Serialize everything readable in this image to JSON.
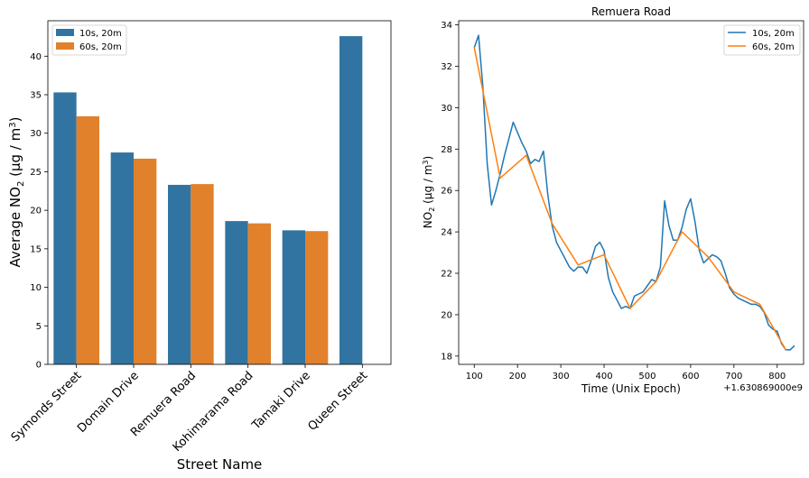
{
  "colors": {
    "blue": "#3274a1",
    "orange": "#e1812c",
    "line_blue": "#1f77b4",
    "line_orange": "#ff7f0e"
  },
  "chart_data": [
    {
      "type": "bar",
      "title": "",
      "xlabel": "Street Name",
      "ylabel_prefix": "Average NO",
      "ylabel_sub": "2",
      "ylabel_mid": " (µg / m",
      "ylabel_sup": "3",
      "ylabel_end": ")",
      "categories": [
        "Symonds Street",
        "Domain Drive",
        "Remuera Road",
        "Kohimarama Road",
        "Tamaki Drive",
        "Queen Street"
      ],
      "series": [
        {
          "name": "10s, 20m",
          "values": [
            35.3,
            27.5,
            23.3,
            18.6,
            17.4,
            42.6
          ]
        },
        {
          "name": "60s, 20m",
          "values": [
            32.2,
            26.7,
            23.4,
            18.3,
            17.3,
            null
          ]
        }
      ],
      "ylim": [
        0,
        44.6
      ],
      "yticks": [
        0,
        5,
        10,
        15,
        20,
        25,
        30,
        35,
        40
      ],
      "legend": "top-left"
    },
    {
      "type": "line",
      "title": "Remuera Road",
      "xlabel": "Time (Unix Epoch)",
      "x_offset_label": "+1.630869000e9",
      "ylabel_prefix": "NO",
      "ylabel_sub": "2",
      "ylabel_mid": " (µg / m",
      "ylabel_sup": "3",
      "ylabel_end": ")",
      "xlim": [
        64,
        861
      ],
      "ylim": [
        17.6,
        34.2
      ],
      "xticks": [
        100,
        200,
        300,
        400,
        500,
        600,
        700,
        800
      ],
      "yticks": [
        18,
        20,
        22,
        24,
        26,
        28,
        30,
        32,
        34
      ],
      "legend": "top-right",
      "series": [
        {
          "name": "10s, 20m",
          "x": [
            100,
            110,
            120,
            130,
            140,
            150,
            160,
            170,
            180,
            190,
            200,
            210,
            220,
            230,
            240,
            250,
            260,
            270,
            280,
            290,
            300,
            310,
            320,
            330,
            340,
            350,
            360,
            370,
            380,
            390,
            400,
            410,
            420,
            430,
            440,
            450,
            460,
            470,
            480,
            490,
            500,
            510,
            520,
            530,
            540,
            550,
            560,
            570,
            580,
            590,
            600,
            610,
            620,
            630,
            640,
            650,
            660,
            670,
            680,
            690,
            700,
            710,
            720,
            730,
            740,
            750,
            760,
            770,
            780,
            790,
            800,
            810,
            820,
            830,
            840
          ],
          "y": [
            32.9,
            33.5,
            31.0,
            27.3,
            25.3,
            26.0,
            26.8,
            27.7,
            28.5,
            29.3,
            28.8,
            28.3,
            27.9,
            27.3,
            27.5,
            27.4,
            27.9,
            25.8,
            24.3,
            23.5,
            23.1,
            22.7,
            22.3,
            22.1,
            22.3,
            22.3,
            22.0,
            22.6,
            23.3,
            23.5,
            23.1,
            21.8,
            21.1,
            20.7,
            20.3,
            20.4,
            20.3,
            20.9,
            21.0,
            21.1,
            21.4,
            21.7,
            21.6,
            22.3,
            25.5,
            24.3,
            23.6,
            23.6,
            24.2,
            25.1,
            25.6,
            24.5,
            23.1,
            22.5,
            22.7,
            22.9,
            22.8,
            22.6,
            22.0,
            21.3,
            21.0,
            20.8,
            20.7,
            20.6,
            20.5,
            20.5,
            20.4,
            20.1,
            19.5,
            19.3,
            19.2,
            18.6,
            18.3,
            18.3,
            18.5
          ]
        },
        {
          "name": "60s, 20m",
          "x": [
            100,
            160,
            220,
            280,
            340,
            400,
            460,
            520,
            580,
            640,
            700,
            760,
            820
          ],
          "y": [
            32.9,
            26.6,
            27.7,
            24.4,
            22.4,
            22.9,
            20.3,
            21.6,
            24.0,
            22.8,
            21.1,
            20.5,
            18.3
          ]
        }
      ]
    }
  ]
}
